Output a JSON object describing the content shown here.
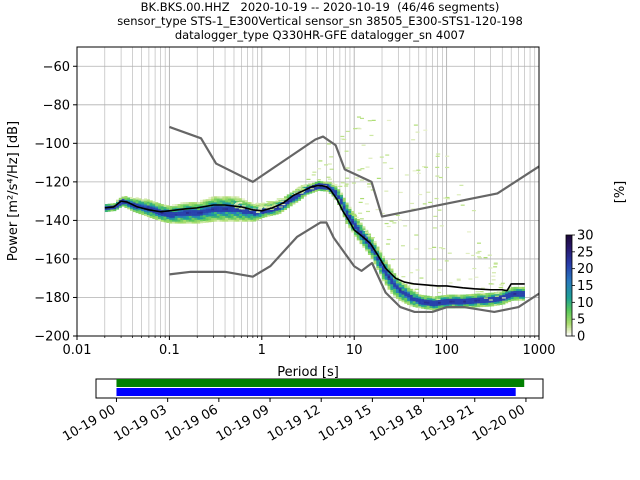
{
  "title_lines": [
    "BK.BKS.00.HHZ   2020-10-19 -- 2020-10-19  (46/46 segments)",
    "sensor_type STS-1_E300Vertical sensor_sn 38505_E300-STS1-120-198",
    "datalogger_type Q330HR-GFE datalogger_sn 4007"
  ],
  "chart_data": {
    "type": "heatmap",
    "xlabel": "Period [s]",
    "ylabel": "Power [m²/s⁴/Hz] [dB]",
    "xscale": "log",
    "xlim": [
      0.01,
      1000
    ],
    "ylim": [
      -200,
      -50
    ],
    "x_ticks": [
      0.01,
      0.1,
      1,
      10,
      100,
      1000
    ],
    "x_tick_labels": [
      "0.01",
      "0.1",
      "1",
      "10",
      "100",
      "1000"
    ],
    "y_ticks": [
      -200,
      -180,
      -160,
      -140,
      -120,
      -100,
      -80,
      -60
    ],
    "grid": true,
    "colorbar": {
      "label": "[%]",
      "ticks": [
        0,
        5,
        10,
        15,
        20,
        25,
        30
      ],
      "range": [
        0,
        30
      ],
      "colormap": "pqlx"
    },
    "series": [
      {
        "role": "noise-model-high",
        "color": "#666666",
        "x": [
          0.1,
          0.22,
          0.32,
          0.8,
          3.8,
          4.6,
          6.3,
          7.9,
          15.4,
          20,
          354.8,
          1000
        ],
        "y": [
          -91.5,
          -97.4,
          -110.5,
          -120,
          -98,
          -96.5,
          -101,
          -113.5,
          -120,
          -138,
          -126,
          -112
        ]
      },
      {
        "role": "noise-model-low",
        "color": "#666666",
        "x": [
          0.1,
          0.17,
          0.4,
          0.8,
          1.24,
          2.4,
          4.3,
          5,
          6,
          10,
          12,
          15.6,
          21.9,
          31.6,
          45,
          70,
          101,
          154,
          328,
          600,
          1000
        ],
        "y": [
          -168,
          -166.7,
          -166.7,
          -169.2,
          -163.7,
          -148.6,
          -141.1,
          -141.1,
          -149,
          -163.8,
          -166.2,
          -162.1,
          -177.5,
          -185,
          -187.5,
          -187.5,
          -185,
          -185,
          -187.5,
          -185,
          -178
        ]
      },
      {
        "role": "mode",
        "color": "#000000",
        "x": [
          0.02,
          0.025,
          0.03,
          0.035,
          0.045,
          0.06,
          0.08,
          0.1,
          0.15,
          0.2,
          0.3,
          0.4,
          0.6,
          0.8,
          1,
          1.3,
          1.7,
          2.2,
          3,
          3.5,
          4,
          4.5,
          5,
          5.5,
          6.5,
          7.5,
          9,
          10,
          12,
          15,
          18,
          22,
          28,
          35,
          45,
          60,
          80,
          100,
          150,
          200,
          300,
          400,
          450,
          500,
          700
        ],
        "y": [
          -133.5,
          -133,
          -130,
          -130.5,
          -133,
          -134.5,
          -135.5,
          -135,
          -134,
          -133.5,
          -132,
          -132,
          -133,
          -134.5,
          -135,
          -133.5,
          -131,
          -127,
          -124,
          -122.5,
          -122,
          -122,
          -122.5,
          -124,
          -129,
          -135,
          -141,
          -145,
          -148,
          -152,
          -158,
          -165,
          -170,
          -172,
          -173,
          -173.5,
          -174,
          -174,
          -175,
          -175.5,
          -176,
          -176,
          -176.5,
          -173,
          -173
        ]
      }
    ],
    "heatmap_bands": [
      {
        "x": [
          0.02,
          0.025,
          0.03,
          0.04,
          0.06,
          0.08,
          0.1,
          0.15,
          0.2,
          0.3,
          0.5,
          0.8,
          1,
          1.5,
          2,
          2.5,
          3,
          4,
          5,
          6,
          7,
          8,
          10,
          12,
          15,
          20,
          25,
          30,
          40,
          50,
          70,
          100,
          150,
          200,
          300,
          400,
          500,
          700
        ],
        "center": [
          -133.5,
          -133,
          -130,
          -132,
          -134,
          -136,
          -137,
          -136,
          -136,
          -134,
          -134,
          -136,
          -135,
          -133,
          -129,
          -126,
          -124,
          -122,
          -122.5,
          -125,
          -130,
          -136,
          -143,
          -148,
          -154,
          -165,
          -172,
          -176,
          -180,
          -182,
          -183,
          -182,
          -182,
          -181.5,
          -181,
          -180,
          -178,
          -178
        ],
        "halfwidth": [
          1.5,
          1.5,
          2,
          3,
          4,
          4,
          4,
          5,
          5,
          6,
          6,
          4,
          3,
          3,
          3,
          3,
          2,
          2,
          2,
          3,
          4,
          5,
          5,
          5,
          5,
          6,
          6,
          5,
          4,
          3,
          3,
          3,
          3,
          3,
          3,
          3,
          3,
          3
        ]
      }
    ],
    "scatter_sparse": {
      "x_range": [
        0.5,
        400
      ],
      "peak_y": -80
    }
  },
  "timeline": {
    "tick_labels": [
      "10-19 00",
      "10-19 03",
      "10-19 06",
      "10-19 09",
      "10-19 12",
      "10-19 15",
      "10-19 18",
      "10-19 21",
      "10-20 00"
    ],
    "bars": [
      {
        "color": "#008000",
        "start_hour": 0,
        "end_hour": 23.9
      },
      {
        "color": "#0000ff",
        "start_hour": 0,
        "end_hour": 23.4
      }
    ],
    "range_hours": [
      -1.2,
      25
    ]
  }
}
